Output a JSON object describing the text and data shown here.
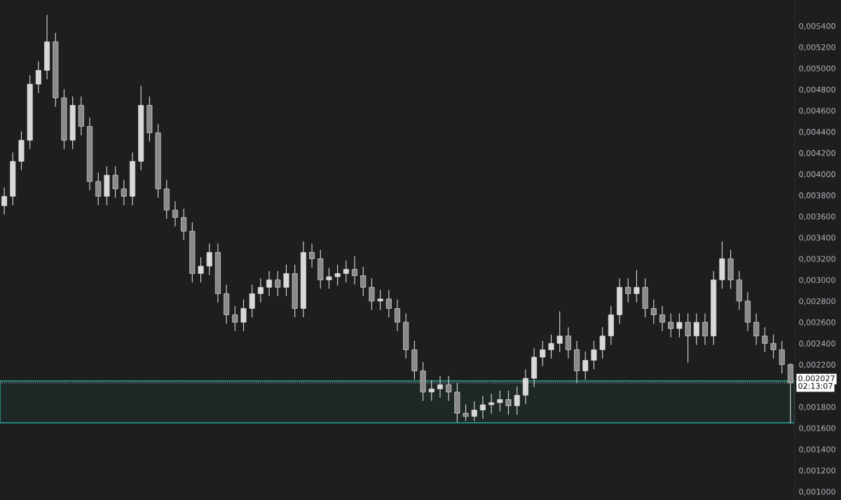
{
  "chart_data": {
    "type": "candlestick",
    "categories": [
      null,
      null,
      null,
      null,
      null,
      null,
      null,
      null,
      null,
      null,
      null,
      null,
      null,
      null,
      null,
      null,
      null,
      null,
      null,
      null,
      null,
      null,
      null,
      null,
      null,
      null,
      null,
      null,
      null,
      null,
      null,
      null,
      null,
      null,
      null,
      null,
      null,
      null,
      null,
      null,
      null,
      null,
      null,
      null,
      null,
      null,
      null,
      null,
      null,
      null,
      null,
      null,
      null,
      null,
      null,
      null,
      null,
      null,
      null,
      null,
      null,
      null,
      null,
      null,
      null,
      null,
      null,
      null,
      null,
      null,
      null,
      null,
      null,
      null,
      null,
      null,
      null,
      null,
      null,
      null,
      null,
      null,
      null,
      null,
      null,
      null,
      null,
      null,
      null,
      null,
      null,
      null,
      null
    ],
    "ohlc": [
      [
        0.0037,
        0.00387,
        0.00362,
        0.00379
      ],
      [
        0.00379,
        0.0042,
        0.00371,
        0.00412
      ],
      [
        0.00412,
        0.0044,
        0.00404,
        0.00432
      ],
      [
        0.00432,
        0.00493,
        0.00424,
        0.00485
      ],
      [
        0.00485,
        0.00506,
        0.00477,
        0.00498
      ],
      [
        0.00498,
        0.0055,
        0.0049,
        0.00525
      ],
      [
        0.00525,
        0.00533,
        0.00464,
        0.00472
      ],
      [
        0.00472,
        0.0048,
        0.00424,
        0.00432
      ],
      [
        0.00432,
        0.00473,
        0.00424,
        0.00465
      ],
      [
        0.00465,
        0.00473,
        0.00437,
        0.00445
      ],
      [
        0.00445,
        0.00453,
        0.00385,
        0.00393
      ],
      [
        0.00393,
        0.00401,
        0.00371,
        0.00379
      ],
      [
        0.00379,
        0.00407,
        0.00371,
        0.00399
      ],
      [
        0.00399,
        0.00407,
        0.00378,
        0.00386
      ],
      [
        0.00386,
        0.00394,
        0.00371,
        0.00379
      ],
      [
        0.00379,
        0.0042,
        0.00371,
        0.00412
      ],
      [
        0.00412,
        0.00483,
        0.00404,
        0.00465
      ],
      [
        0.00465,
        0.00473,
        0.00431,
        0.00439
      ],
      [
        0.00439,
        0.00447,
        0.00378,
        0.00386
      ],
      [
        0.00386,
        0.00394,
        0.00358,
        0.00366
      ],
      [
        0.00366,
        0.00374,
        0.00351,
        0.00359
      ],
      [
        0.00359,
        0.00367,
        0.00338,
        0.00346
      ],
      [
        0.00346,
        0.00354,
        0.00298,
        0.00306
      ],
      [
        0.00306,
        0.00321,
        0.00298,
        0.00313
      ],
      [
        0.00313,
        0.00334,
        0.00305,
        0.00326
      ],
      [
        0.00326,
        0.00334,
        0.00279,
        0.00287
      ],
      [
        0.00287,
        0.00295,
        0.00259,
        0.00267
      ],
      [
        0.00267,
        0.00275,
        0.00252,
        0.0026
      ],
      [
        0.0026,
        0.00281,
        0.00252,
        0.00273
      ],
      [
        0.00273,
        0.00295,
        0.00265,
        0.00287
      ],
      [
        0.00287,
        0.00301,
        0.00279,
        0.00293
      ],
      [
        0.00293,
        0.00308,
        0.00285,
        0.003
      ],
      [
        0.003,
        0.00308,
        0.00285,
        0.00293
      ],
      [
        0.00293,
        0.00314,
        0.00285,
        0.00306
      ],
      [
        0.00306,
        0.00314,
        0.00265,
        0.00273
      ],
      [
        0.00273,
        0.00336,
        0.00265,
        0.00326
      ],
      [
        0.00326,
        0.00334,
        0.00312,
        0.0032
      ],
      [
        0.0032,
        0.00328,
        0.00292,
        0.003
      ],
      [
        0.003,
        0.00311,
        0.00292,
        0.00303
      ],
      [
        0.00303,
        0.00314,
        0.00295,
        0.00306
      ],
      [
        0.00306,
        0.00318,
        0.00298,
        0.0031
      ],
      [
        0.0031,
        0.00322,
        0.00296,
        0.00304
      ],
      [
        0.00304,
        0.00312,
        0.00285,
        0.00293
      ],
      [
        0.00293,
        0.00301,
        0.00272,
        0.0028
      ],
      [
        0.0028,
        0.0029,
        0.00272,
        0.00282
      ],
      [
        0.00282,
        0.0029,
        0.00265,
        0.00273
      ],
      [
        0.00273,
        0.00281,
        0.00252,
        0.0026
      ],
      [
        0.0026,
        0.00268,
        0.00226,
        0.00234
      ],
      [
        0.00234,
        0.00242,
        0.00206,
        0.00214
      ],
      [
        0.00214,
        0.00222,
        0.00186,
        0.00194
      ],
      [
        0.00194,
        0.00205,
        0.00186,
        0.00197
      ],
      [
        0.00197,
        0.00209,
        0.00189,
        0.00201
      ],
      [
        0.00201,
        0.00209,
        0.00186,
        0.00194
      ],
      [
        0.00194,
        0.00202,
        0.00166,
        0.00174
      ],
      [
        0.00174,
        0.00182,
        0.00167,
        0.00171
      ],
      [
        0.00171,
        0.00185,
        0.00167,
        0.00177
      ],
      [
        0.00177,
        0.0019,
        0.00169,
        0.00182
      ],
      [
        0.00182,
        0.00192,
        0.00174,
        0.00184
      ],
      [
        0.00184,
        0.00195,
        0.00176,
        0.00187
      ],
      [
        0.00187,
        0.00195,
        0.00173,
        0.00181
      ],
      [
        0.00181,
        0.00199,
        0.00173,
        0.00191
      ],
      [
        0.00191,
        0.00215,
        0.00183,
        0.00207
      ],
      [
        0.00207,
        0.00235,
        0.00199,
        0.00227
      ],
      [
        0.00227,
        0.00242,
        0.00219,
        0.00234
      ],
      [
        0.00234,
        0.00248,
        0.00226,
        0.0024
      ],
      [
        0.0024,
        0.0027,
        0.00232,
        0.00247
      ],
      [
        0.00247,
        0.00255,
        0.00226,
        0.00234
      ],
      [
        0.00234,
        0.00242,
        0.00203,
        0.00214
      ],
      [
        0.00214,
        0.00232,
        0.00206,
        0.00224
      ],
      [
        0.00224,
        0.00242,
        0.00216,
        0.00234
      ],
      [
        0.00234,
        0.00255,
        0.00226,
        0.00247
      ],
      [
        0.00247,
        0.00275,
        0.00239,
        0.00267
      ],
      [
        0.00267,
        0.00301,
        0.00259,
        0.00293
      ],
      [
        0.00293,
        0.00301,
        0.00279,
        0.00287
      ],
      [
        0.00287,
        0.00309,
        0.00279,
        0.00293
      ],
      [
        0.00293,
        0.00301,
        0.00265,
        0.00273
      ],
      [
        0.00273,
        0.00281,
        0.00259,
        0.00267
      ],
      [
        0.00267,
        0.00275,
        0.00252,
        0.0026
      ],
      [
        0.0026,
        0.00268,
        0.00246,
        0.00254
      ],
      [
        0.00254,
        0.00268,
        0.00246,
        0.0026
      ],
      [
        0.0026,
        0.00268,
        0.00222,
        0.00247
      ],
      [
        0.00247,
        0.00268,
        0.00239,
        0.0026
      ],
      [
        0.0026,
        0.00268,
        0.00239,
        0.00247
      ],
      [
        0.00247,
        0.00308,
        0.00239,
        0.003
      ],
      [
        0.003,
        0.00336,
        0.00292,
        0.0032
      ],
      [
        0.0032,
        0.00328,
        0.00292,
        0.003
      ],
      [
        0.003,
        0.00308,
        0.00272,
        0.0028
      ],
      [
        0.0028,
        0.00288,
        0.00252,
        0.0026
      ],
      [
        0.0026,
        0.00268,
        0.00239,
        0.00247
      ],
      [
        0.00247,
        0.00255,
        0.00232,
        0.0024
      ],
      [
        0.0024,
        0.00248,
        0.00226,
        0.00234
      ],
      [
        0.00234,
        0.00242,
        0.00212,
        0.0022
      ],
      [
        0.0022,
        0.00221,
        0.00165,
        0.002027
      ]
    ],
    "color": "#d9d9d9",
    "ylim": [
      0.00092,
      0.005645
    ],
    "yticks": [
      {
        "value": 0.001,
        "label": "0,001000"
      },
      {
        "value": 0.0012,
        "label": "0,001200"
      },
      {
        "value": 0.0014,
        "label": "0,001400"
      },
      {
        "value": 0.0016,
        "label": "0,001600"
      },
      {
        "value": 0.0018,
        "label": "0,001800"
      },
      {
        "value": 0.0022,
        "label": "0,002200"
      },
      {
        "value": 0.0024,
        "label": "0,002400"
      },
      {
        "value": 0.0026,
        "label": "0,002600"
      },
      {
        "value": 0.0028,
        "label": "0,002800"
      },
      {
        "value": 0.003,
        "label": "0,003000"
      },
      {
        "value": 0.0032,
        "label": "0,003200"
      },
      {
        "value": 0.0034,
        "label": "0,003400"
      },
      {
        "value": 0.0036,
        "label": "0,003600"
      },
      {
        "value": 0.0038,
        "label": "0,003800"
      },
      {
        "value": 0.004,
        "label": "0,004000"
      },
      {
        "value": 0.0042,
        "label": "0,004200"
      },
      {
        "value": 0.0044,
        "label": "0,004400"
      },
      {
        "value": 0.0046,
        "label": "0,004600"
      },
      {
        "value": 0.0048,
        "label": "0,004800"
      },
      {
        "value": 0.005,
        "label": "0,005000"
      },
      {
        "value": 0.0052,
        "label": "0,005200"
      },
      {
        "value": 0.0054,
        "label": "0,005400"
      }
    ],
    "tick_labels": "y",
    "bands": [
      {
        "axis": "y",
        "from": 0.00165,
        "to": 0.002045,
        "color": "#26a69a"
      }
    ],
    "ref_lines": [
      {
        "axis": "y",
        "value": 0.002027,
        "label": "0,002027",
        "color": "#d9d9d9",
        "line_style": "dotted"
      }
    ],
    "annotations": [
      "02:13:07"
    ]
  }
}
